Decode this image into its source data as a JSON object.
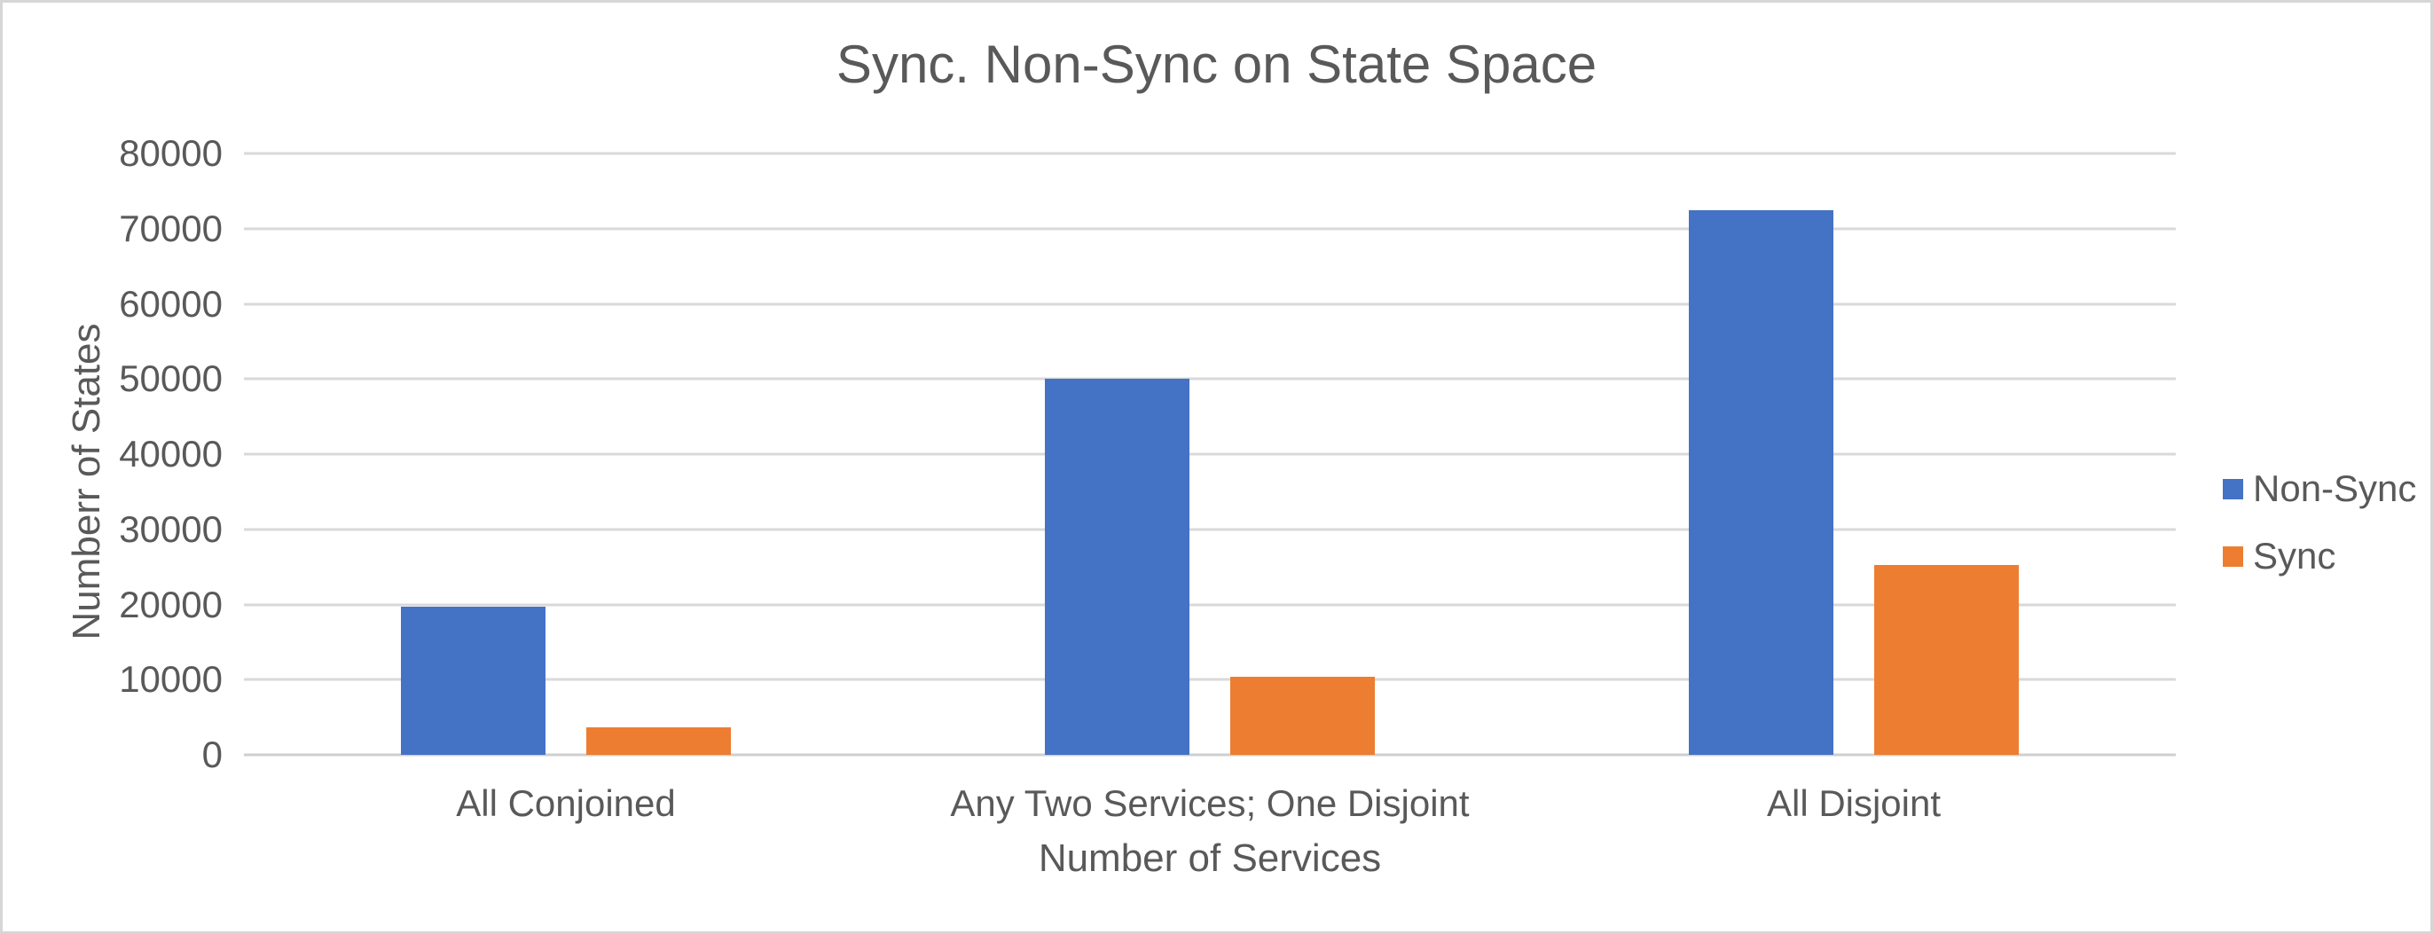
{
  "window": {
    "background": "#ffffff",
    "border_color": "#d6d6d6"
  },
  "chart_data": {
    "type": "bar",
    "title": "Sync. Non-Sync on State Space",
    "xlabel": "Number of Services",
    "ylabel": "Numberr of States",
    "categories": [
      "All Conjoined",
      "Any Two Services; One Disjoint",
      "All Disjoint"
    ],
    "series": [
      {
        "name": "Non-Sync",
        "color": "#4472C4",
        "values": [
          19700,
          50000,
          72500
        ]
      },
      {
        "name": "Sync",
        "color": "#ED7D31",
        "values": [
          3700,
          10400,
          25200
        ]
      }
    ],
    "ylim": [
      0,
      80000
    ],
    "ytick_interval": 10000,
    "yticks": [
      0,
      10000,
      20000,
      30000,
      40000,
      50000,
      60000,
      70000,
      80000
    ],
    "grid": true,
    "legend_position": "right",
    "gridline_color": "#d9d9d9",
    "text_color": "#595959"
  }
}
